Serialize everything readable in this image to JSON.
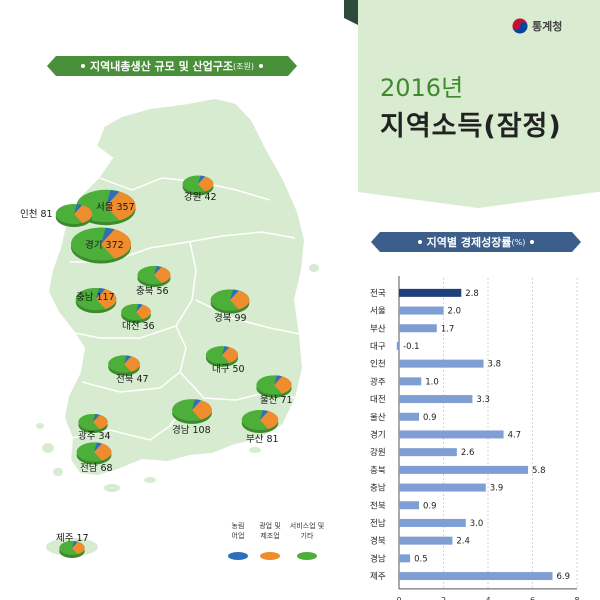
{
  "logo": {
    "text": "통계청"
  },
  "title": {
    "year": "2016년",
    "main": "지역소득(잠정)"
  },
  "map_section": {
    "ribbon_label": "지역내총생산 규모 및 산업구조",
    "ribbon_unit": "(조원)"
  },
  "bar_section": {
    "ribbon_label": "지역별 경제성장률",
    "ribbon_unit": "(%)"
  },
  "colors": {
    "agriculture": "#2f6fb8",
    "manufacturing": "#ef8c2e",
    "service": "#4caf3a",
    "bar": "#7f9fd4",
    "bar_highlight": "#1f3f7a",
    "map": "#d6ebd0"
  },
  "chart_data": [
    {
      "type": "pie",
      "title": "지역내총생산 규모 및 산업구조",
      "unit": "조원",
      "legend": [
        "농림어업",
        "광업 및 제조업",
        "서비스업 및 기타"
      ],
      "regions": [
        {
          "label": "서울",
          "value": 357
        },
        {
          "label": "강원",
          "value": 42
        },
        {
          "label": "인천",
          "value": 81
        },
        {
          "label": "경기",
          "value": 372
        },
        {
          "label": "충북",
          "value": 56
        },
        {
          "label": "충남",
          "value": 117
        },
        {
          "label": "대전",
          "value": 36
        },
        {
          "label": "경북",
          "value": 99
        },
        {
          "label": "전북",
          "value": 47
        },
        {
          "label": "대구",
          "value": 50
        },
        {
          "label": "울산",
          "value": 71
        },
        {
          "label": "광주",
          "value": 34
        },
        {
          "label": "경남",
          "value": 108
        },
        {
          "label": "부산",
          "value": 81
        },
        {
          "label": "전남",
          "value": 68
        },
        {
          "label": "제주",
          "value": 17
        }
      ]
    },
    {
      "type": "bar",
      "orientation": "horizontal",
      "title": "지역별 경제성장률",
      "unit": "%",
      "categories": [
        "전국",
        "서울",
        "부산",
        "대구",
        "인천",
        "광주",
        "대전",
        "울산",
        "경기",
        "강원",
        "충북",
        "충남",
        "전북",
        "전남",
        "경북",
        "경남",
        "제주"
      ],
      "values": [
        2.8,
        2.0,
        1.7,
        -0.1,
        3.8,
        1.0,
        3.3,
        0.9,
        4.7,
        2.6,
        5.8,
        3.9,
        0.9,
        3.0,
        2.4,
        0.5,
        6.9
      ],
      "xlim": [
        0,
        8
      ],
      "xticks": [
        0,
        2,
        4,
        6,
        8
      ],
      "highlight": "전국"
    }
  ]
}
